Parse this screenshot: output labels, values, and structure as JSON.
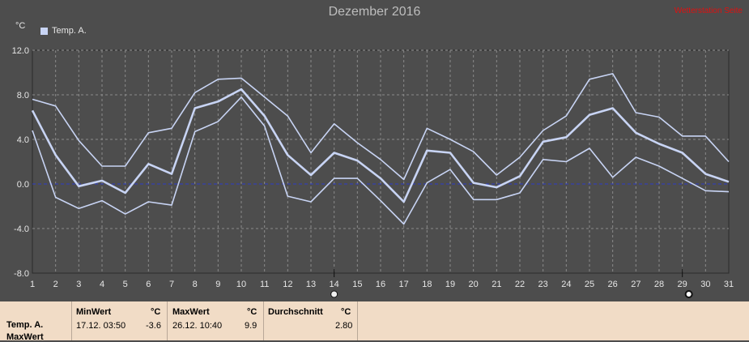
{
  "header": {
    "title": "Dezember 2016",
    "top_right_link": "Wetterstation Seite",
    "unit": "°C"
  },
  "legend": {
    "label": "Temp. A."
  },
  "colors": {
    "background": "#4d4d4d",
    "series_main": "#c8d4f4",
    "grid": "#8a8a8a",
    "zero_line": "#2d3cc8",
    "stats_bg": "#f1dcc6"
  },
  "markers": {
    "day14": "14",
    "day29": "29"
  },
  "chart_data": {
    "type": "line",
    "title": "Dezember 2016",
    "ylabel": "°C",
    "xlabel": "",
    "ylim": [
      -8.0,
      12.0
    ],
    "yticks": [
      12.0,
      8.0,
      4.0,
      0.0,
      -4.0,
      -8.0
    ],
    "ytick_labels": [
      "12.0",
      "8.0",
      "4.0",
      "0.0",
      "-4.0",
      "-8.0"
    ],
    "x": [
      "1",
      "2",
      "3",
      "4",
      "5",
      "6",
      "7",
      "8",
      "9",
      "10",
      "11",
      "12",
      "13",
      "14",
      "15",
      "16",
      "17",
      "18",
      "19",
      "20",
      "21",
      "22",
      "23",
      "24",
      "25",
      "26",
      "27",
      "28",
      "29",
      "30",
      "31"
    ],
    "series": [
      {
        "name": "Temp. A.",
        "values": [
          6.6,
          2.6,
          -0.2,
          0.3,
          -0.8,
          1.8,
          0.9,
          6.8,
          7.4,
          8.5,
          6.1,
          2.6,
          0.8,
          2.8,
          2.1,
          0.5,
          -1.6,
          3.0,
          2.8,
          0.1,
          -0.3,
          0.7,
          3.8,
          4.2,
          6.2,
          6.8,
          4.6,
          3.6,
          2.8,
          0.9,
          0.2
        ]
      },
      {
        "name": "",
        "values": [
          7.6,
          7.0,
          3.9,
          1.6,
          1.6,
          4.6,
          5.0,
          8.2,
          9.4,
          9.5,
          7.8,
          6.1,
          2.8,
          5.4,
          3.7,
          2.2,
          0.4,
          5.0,
          4.0,
          2.9,
          0.8,
          2.4,
          4.8,
          6.1,
          9.4,
          9.9,
          6.4,
          6.0,
          4.3,
          4.3,
          2.0
        ]
      },
      {
        "name": "",
        "values": [
          4.8,
          -1.2,
          -2.2,
          -1.5,
          -2.7,
          -1.6,
          -1.9,
          4.7,
          5.6,
          7.8,
          5.2,
          -1.1,
          -1.6,
          0.5,
          0.5,
          -1.5,
          -3.6,
          0.1,
          1.3,
          -1.4,
          -1.4,
          -0.8,
          2.2,
          2.0,
          3.2,
          0.6,
          2.4,
          1.6,
          0.5,
          -0.6,
          -0.7
        ]
      }
    ]
  },
  "stats": {
    "row_label_1": "Temp. A.",
    "row_label_2": "MaxWert",
    "min_header": "MinWert",
    "min_unit": "°C",
    "min_time": "17.12.  03:50",
    "min_value": "-3.6",
    "max_header": "MaxWert",
    "max_unit": "°C",
    "max_time": "26.12.  10:40",
    "max_value": "9.9",
    "avg_header": "Durchschnitt",
    "avg_unit": "°C",
    "avg_value": "2.80"
  }
}
